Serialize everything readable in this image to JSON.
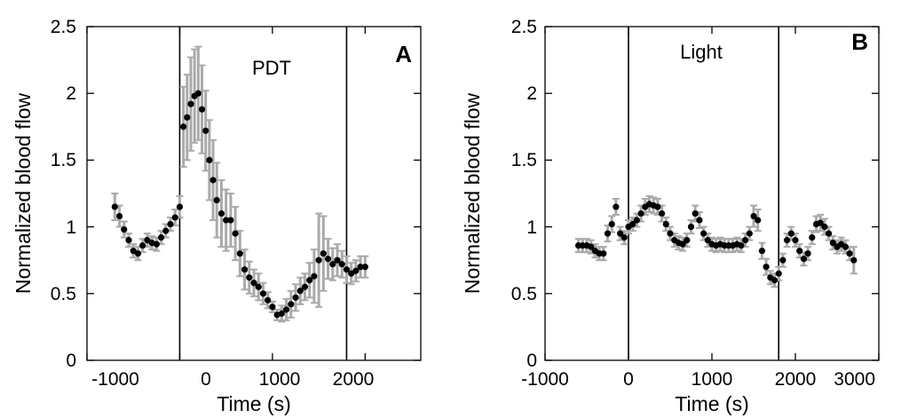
{
  "chart_data": [
    {
      "type": "scatter",
      "panel_label": "A",
      "annotation": "PDT",
      "xlabel": "Time (s)",
      "ylabel": "Normalized blood flow",
      "xlim": [
        -1000,
        2600
      ],
      "ylim": [
        0,
        2.5
      ],
      "xticks": [
        -1000,
        0,
        1000,
        2000
      ],
      "xtick_labels": [
        "-1000",
        "0",
        "1000",
        "2000"
      ],
      "yticks": [
        0,
        0.5,
        1,
        1.5,
        2,
        2.5
      ],
      "ytick_labels": [
        "0",
        "0.5",
        "1",
        "1.5",
        "2",
        "2.5"
      ],
      "vlines": [
        0,
        1800
      ],
      "marker_color": "#000000",
      "error_color": "#aaaaaa",
      "series": [
        {
          "x": [
            -700,
            -650,
            -600,
            -550,
            -500,
            -450,
            -400,
            -350,
            -300,
            -250,
            -200,
            -150,
            -100,
            -50,
            0,
            40,
            80,
            120,
            160,
            200,
            240,
            280,
            320,
            360,
            400,
            450,
            500,
            550,
            600,
            650,
            700,
            750,
            800,
            850,
            900,
            950,
            1000,
            1050,
            1100,
            1150,
            1200,
            1250,
            1300,
            1350,
            1400,
            1450,
            1500,
            1550,
            1600,
            1650,
            1700,
            1750,
            1800,
            1850,
            1900,
            1950,
            2000
          ],
          "y": [
            1.15,
            1.08,
            0.98,
            0.9,
            0.82,
            0.8,
            0.86,
            0.9,
            0.88,
            0.87,
            0.92,
            0.97,
            1.02,
            1.07,
            1.15,
            1.75,
            1.82,
            1.92,
            1.98,
            2.0,
            1.88,
            1.72,
            1.5,
            1.35,
            1.2,
            1.1,
            1.05,
            1.05,
            0.95,
            0.8,
            0.68,
            0.62,
            0.58,
            0.55,
            0.5,
            0.45,
            0.4,
            0.34,
            0.35,
            0.38,
            0.42,
            0.47,
            0.52,
            0.55,
            0.6,
            0.63,
            0.75,
            0.8,
            0.76,
            0.72,
            0.75,
            0.72,
            0.68,
            0.65,
            0.67,
            0.7,
            0.7
          ],
          "err": [
            0.1,
            0.08,
            0.06,
            0.05,
            0.05,
            0.05,
            0.05,
            0.05,
            0.05,
            0.05,
            0.05,
            0.05,
            0.05,
            0.06,
            0.08,
            0.3,
            0.32,
            0.35,
            0.35,
            0.35,
            0.33,
            0.3,
            0.3,
            0.3,
            0.28,
            0.25,
            0.23,
            0.2,
            0.2,
            0.17,
            0.15,
            0.12,
            0.1,
            0.1,
            0.08,
            0.06,
            0.04,
            0.04,
            0.06,
            0.08,
            0.1,
            0.1,
            0.1,
            0.1,
            0.13,
            0.2,
            0.35,
            0.28,
            0.15,
            0.12,
            0.12,
            0.1,
            0.1,
            0.08,
            0.08,
            0.08,
            0.08
          ]
        }
      ]
    },
    {
      "type": "scatter",
      "panel_label": "B",
      "annotation": "Light",
      "xlabel": "Time (s)",
      "ylabel": "Normalized blood flow",
      "xlim": [
        -1000,
        3000
      ],
      "ylim": [
        0,
        2.5
      ],
      "xticks": [
        -1000,
        0,
        1000,
        2000,
        3000
      ],
      "xtick_labels": [
        "-1000",
        "0",
        "1000",
        "2000",
        "3000"
      ],
      "yticks": [
        0,
        0.5,
        1,
        1.5,
        2,
        2.5
      ],
      "ytick_labels": [
        "0",
        "0.5",
        "1",
        "1.5",
        "2",
        "2.5"
      ],
      "vlines": [
        0,
        1800
      ],
      "marker_color": "#000000",
      "error_color": "#aaaaaa",
      "series": [
        {
          "x": [
            -600,
            -550,
            -500,
            -450,
            -400,
            -350,
            -300,
            -250,
            -200,
            -150,
            -100,
            -50,
            0,
            50,
            100,
            150,
            200,
            250,
            300,
            350,
            400,
            450,
            500,
            550,
            600,
            650,
            700,
            750,
            800,
            850,
            900,
            950,
            1000,
            1050,
            1100,
            1150,
            1200,
            1250,
            1300,
            1350,
            1400,
            1450,
            1500,
            1550,
            1600,
            1650,
            1700,
            1750,
            1800,
            1850,
            1900,
            1950,
            2000,
            2050,
            2100,
            2150,
            2200,
            2250,
            2300,
            2350,
            2400,
            2450,
            2500,
            2550,
            2600,
            2650,
            2700
          ],
          "y": [
            0.86,
            0.86,
            0.86,
            0.85,
            0.82,
            0.8,
            0.8,
            0.95,
            1.02,
            1.15,
            0.95,
            0.92,
            1.0,
            1.02,
            1.05,
            1.1,
            1.15,
            1.17,
            1.16,
            1.15,
            1.1,
            1.02,
            0.95,
            0.9,
            0.88,
            0.87,
            0.9,
            1.0,
            1.1,
            1.05,
            0.95,
            0.9,
            0.87,
            0.86,
            0.87,
            0.86,
            0.86,
            0.86,
            0.87,
            0.86,
            0.9,
            0.95,
            1.08,
            1.05,
            0.82,
            0.7,
            0.62,
            0.6,
            0.65,
            0.75,
            0.9,
            0.95,
            0.9,
            0.82,
            0.76,
            0.8,
            0.92,
            1.02,
            1.03,
            1.0,
            0.95,
            0.88,
            0.85,
            0.87,
            0.85,
            0.8,
            0.75
          ],
          "err": [
            0.05,
            0.05,
            0.05,
            0.05,
            0.05,
            0.05,
            0.05,
            0.06,
            0.06,
            0.06,
            0.05,
            0.05,
            0.05,
            0.05,
            0.05,
            0.06,
            0.06,
            0.06,
            0.06,
            0.06,
            0.06,
            0.05,
            0.05,
            0.05,
            0.05,
            0.05,
            0.05,
            0.05,
            0.06,
            0.06,
            0.05,
            0.05,
            0.05,
            0.05,
            0.05,
            0.05,
            0.05,
            0.05,
            0.05,
            0.05,
            0.05,
            0.05,
            0.08,
            0.08,
            0.06,
            0.06,
            0.05,
            0.05,
            0.05,
            0.05,
            0.05,
            0.05,
            0.05,
            0.05,
            0.05,
            0.05,
            0.05,
            0.06,
            0.06,
            0.06,
            0.05,
            0.05,
            0.05,
            0.05,
            0.05,
            0.05,
            0.1
          ]
        }
      ]
    }
  ]
}
